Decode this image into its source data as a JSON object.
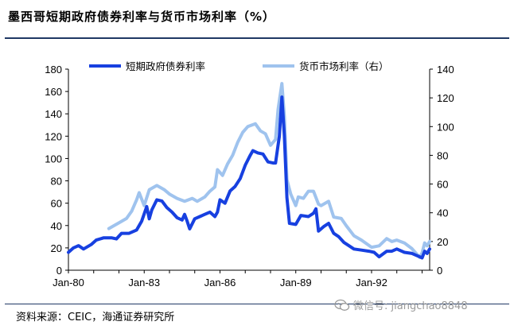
{
  "header": {
    "title": "墨西哥短期政府债券利率与货币市场利率（%）"
  },
  "footer": {
    "source": "资料来源：CEIC，海通证券研究所",
    "watermark": "微信号: jiangchao8848"
  },
  "chart_data": {
    "type": "line",
    "title": "墨西哥短期政府债券利率与货币市场利率（%）",
    "x_tick_labels": [
      "Jan-80",
      "Jan-83",
      "Jan-86",
      "Jan-89",
      "Jan-92"
    ],
    "x_range": [
      1980.0,
      1994.3
    ],
    "y_left": {
      "range": [
        0,
        180
      ],
      "ticks": [
        0,
        20,
        40,
        60,
        80,
        100,
        120,
        140,
        160,
        180
      ]
    },
    "y_right": {
      "range": [
        0,
        140
      ],
      "ticks": [
        0,
        20,
        40,
        60,
        80,
        100,
        120,
        140
      ]
    },
    "legend_placement": "top",
    "grid": false,
    "series": [
      {
        "name": "短期政府债券利率",
        "axis": "left",
        "color": "#1740e0",
        "points": [
          [
            1980.0,
            16
          ],
          [
            1980.2,
            20
          ],
          [
            1980.4,
            22
          ],
          [
            1980.6,
            19
          ],
          [
            1980.9,
            23
          ],
          [
            1981.1,
            27
          ],
          [
            1981.4,
            29
          ],
          [
            1981.7,
            29
          ],
          [
            1981.9,
            28
          ],
          [
            1982.1,
            33
          ],
          [
            1982.4,
            33
          ],
          [
            1982.7,
            36
          ],
          [
            1982.9,
            44
          ],
          [
            1983.1,
            57
          ],
          [
            1983.2,
            46
          ],
          [
            1983.3,
            54
          ],
          [
            1983.5,
            63
          ],
          [
            1983.7,
            62
          ],
          [
            1983.9,
            56
          ],
          [
            1984.1,
            52
          ],
          [
            1984.3,
            47
          ],
          [
            1984.5,
            45
          ],
          [
            1984.6,
            50
          ],
          [
            1984.7,
            44
          ],
          [
            1984.8,
            37
          ],
          [
            1985.0,
            46
          ],
          [
            1985.2,
            48
          ],
          [
            1985.4,
            50
          ],
          [
            1985.6,
            52
          ],
          [
            1985.8,
            48
          ],
          [
            1985.9,
            52
          ],
          [
            1986.0,
            63
          ],
          [
            1986.2,
            60
          ],
          [
            1986.4,
            71
          ],
          [
            1986.6,
            75
          ],
          [
            1986.8,
            82
          ],
          [
            1987.0,
            94
          ],
          [
            1987.2,
            103
          ],
          [
            1987.3,
            107
          ],
          [
            1987.5,
            105
          ],
          [
            1987.7,
            104
          ],
          [
            1987.9,
            97
          ],
          [
            1988.1,
            96
          ],
          [
            1988.2,
            96
          ],
          [
            1988.35,
            120
          ],
          [
            1988.45,
            155
          ],
          [
            1988.55,
            120
          ],
          [
            1988.65,
            65
          ],
          [
            1988.75,
            42
          ],
          [
            1989.0,
            41
          ],
          [
            1989.2,
            49
          ],
          [
            1989.5,
            48
          ],
          [
            1989.7,
            51
          ],
          [
            1989.8,
            55
          ],
          [
            1989.9,
            35
          ],
          [
            1990.1,
            39
          ],
          [
            1990.3,
            42
          ],
          [
            1990.5,
            33
          ],
          [
            1990.7,
            30
          ],
          [
            1990.9,
            25
          ],
          [
            1991.1,
            22
          ],
          [
            1991.3,
            19
          ],
          [
            1991.6,
            18
          ],
          [
            1991.9,
            17
          ],
          [
            1992.1,
            16
          ],
          [
            1992.3,
            12
          ],
          [
            1992.6,
            17
          ],
          [
            1992.8,
            17
          ],
          [
            1993.0,
            19
          ],
          [
            1993.3,
            16
          ],
          [
            1993.6,
            15
          ],
          [
            1993.9,
            12
          ],
          [
            1994.0,
            11
          ],
          [
            1994.1,
            17
          ],
          [
            1994.2,
            15
          ],
          [
            1994.3,
            19
          ]
        ]
      },
      {
        "name": "货币市场利率（右）",
        "axis": "right",
        "color": "#9fc3ee",
        "points": [
          [
            1981.6,
            29
          ],
          [
            1981.8,
            31
          ],
          [
            1982.0,
            33
          ],
          [
            1982.3,
            36
          ],
          [
            1982.5,
            41
          ],
          [
            1982.7,
            49
          ],
          [
            1982.8,
            54
          ],
          [
            1983.0,
            45
          ],
          [
            1983.2,
            56
          ],
          [
            1983.5,
            59
          ],
          [
            1983.8,
            56
          ],
          [
            1984.0,
            53
          ],
          [
            1984.3,
            50
          ],
          [
            1984.6,
            48
          ],
          [
            1984.9,
            50
          ],
          [
            1985.1,
            48
          ],
          [
            1985.4,
            51
          ],
          [
            1985.6,
            55
          ],
          [
            1985.8,
            58
          ],
          [
            1985.9,
            70
          ],
          [
            1986.1,
            66
          ],
          [
            1986.3,
            74
          ],
          [
            1986.5,
            80
          ],
          [
            1986.7,
            89
          ],
          [
            1986.9,
            96
          ],
          [
            1987.1,
            100
          ],
          [
            1987.4,
            102
          ],
          [
            1987.6,
            97
          ],
          [
            1987.8,
            95
          ],
          [
            1988.0,
            87
          ],
          [
            1988.2,
            91
          ],
          [
            1988.3,
            112
          ],
          [
            1988.45,
            130
          ],
          [
            1988.55,
            107
          ],
          [
            1988.65,
            63
          ],
          [
            1988.8,
            53
          ],
          [
            1989.0,
            45
          ],
          [
            1989.1,
            51
          ],
          [
            1989.3,
            50
          ],
          [
            1989.5,
            55
          ],
          [
            1989.7,
            55
          ],
          [
            1989.9,
            46
          ],
          [
            1990.0,
            45
          ],
          [
            1990.3,
            48
          ],
          [
            1990.5,
            37
          ],
          [
            1990.8,
            36
          ],
          [
            1991.0,
            31
          ],
          [
            1991.3,
            24
          ],
          [
            1991.6,
            21
          ],
          [
            1992.0,
            16
          ],
          [
            1992.3,
            17
          ],
          [
            1992.6,
            22
          ],
          [
            1992.8,
            20
          ],
          [
            1993.0,
            21
          ],
          [
            1993.3,
            19
          ],
          [
            1993.6,
            15
          ],
          [
            1993.9,
            9
          ],
          [
            1994.0,
            12
          ],
          [
            1994.1,
            19
          ],
          [
            1994.2,
            17
          ],
          [
            1994.3,
            20
          ]
        ]
      }
    ]
  }
}
